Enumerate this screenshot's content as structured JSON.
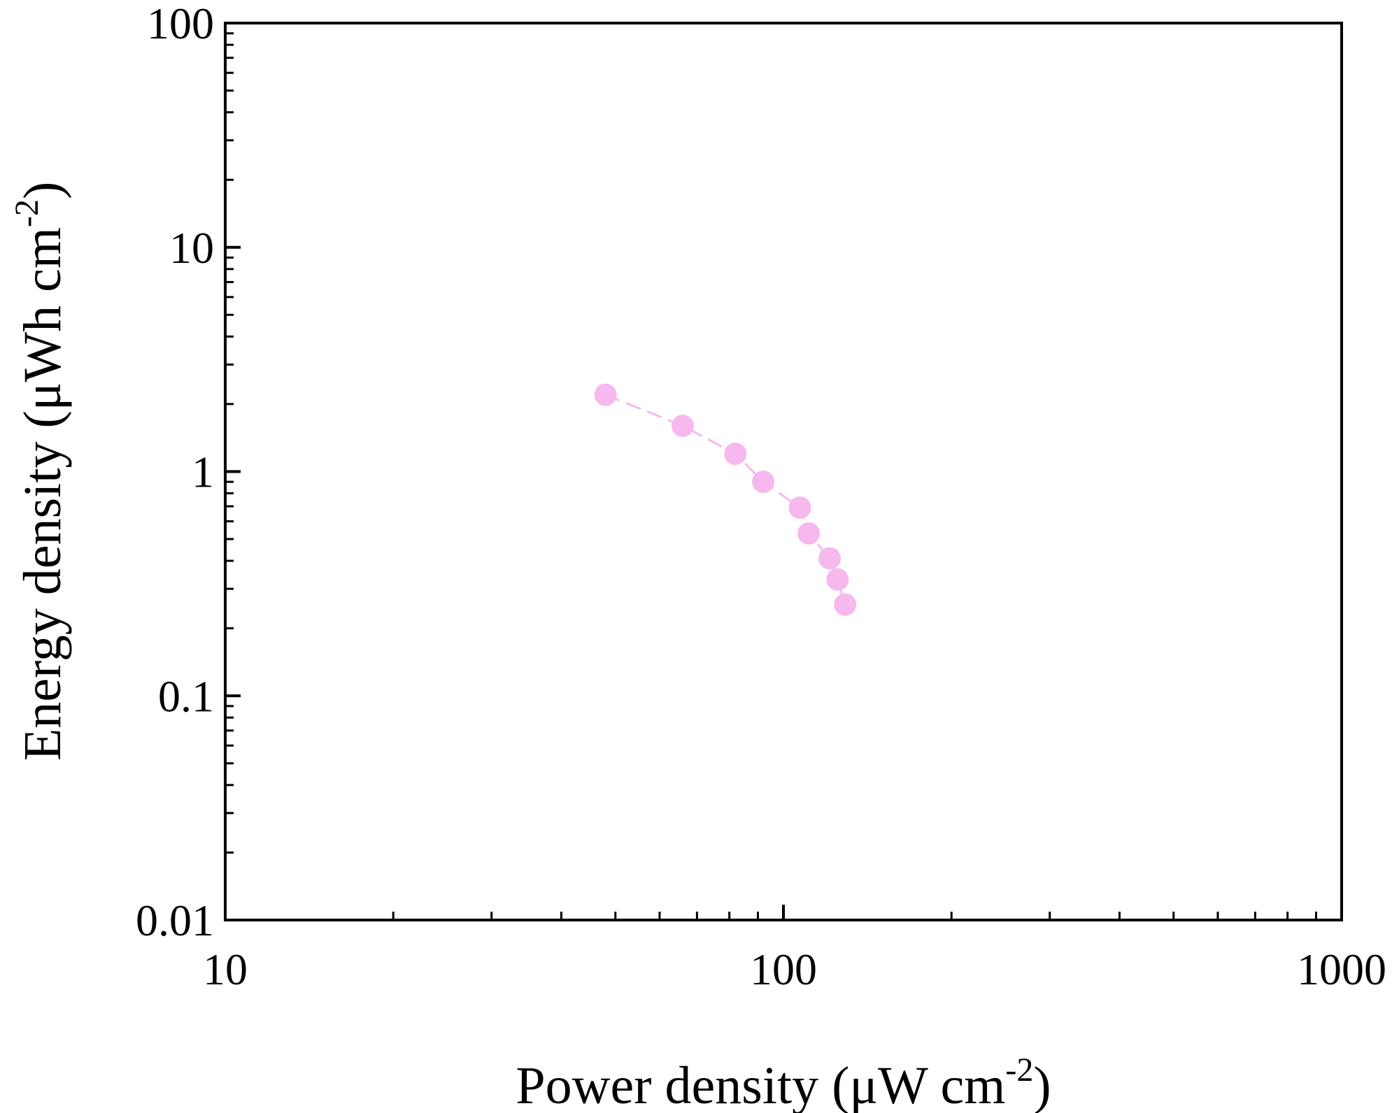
{
  "chart_data": {
    "type": "scatter",
    "title": "",
    "xlabel": {
      "main": "Power density (μW cm",
      "sup": "-2",
      "close": ")"
    },
    "ylabel": {
      "main": "Energy density (μWh cm",
      "sup": "-2",
      "close": ")"
    },
    "x_scale": "log",
    "y_scale": "log",
    "xlim": [
      10,
      1000
    ],
    "ylim": [
      0.01,
      100
    ],
    "x_ticks": [
      {
        "value": 10,
        "label": "10"
      },
      {
        "value": 100,
        "label": "100"
      },
      {
        "value": 1000,
        "label": "1000"
      }
    ],
    "y_ticks": [
      {
        "value": 0.01,
        "label": "0.01"
      },
      {
        "value": 0.1,
        "label": "0.1"
      },
      {
        "value": 1,
        "label": "1"
      },
      {
        "value": 10,
        "label": "10"
      },
      {
        "value": 100,
        "label": "100"
      }
    ],
    "grid": false,
    "legend": "none",
    "series": [
      {
        "color": "#f7b8ee",
        "marker": "circle",
        "line_style": "dashed",
        "points": [
          {
            "x": 48,
            "y": 2.2
          },
          {
            "x": 66,
            "y": 1.6
          },
          {
            "x": 82,
            "y": 1.2
          },
          {
            "x": 92,
            "y": 0.9
          },
          {
            "x": 107,
            "y": 0.69
          },
          {
            "x": 111,
            "y": 0.53
          },
          {
            "x": 121,
            "y": 0.41
          },
          {
            "x": 125,
            "y": 0.33
          },
          {
            "x": 129,
            "y": 0.255
          }
        ]
      }
    ]
  }
}
